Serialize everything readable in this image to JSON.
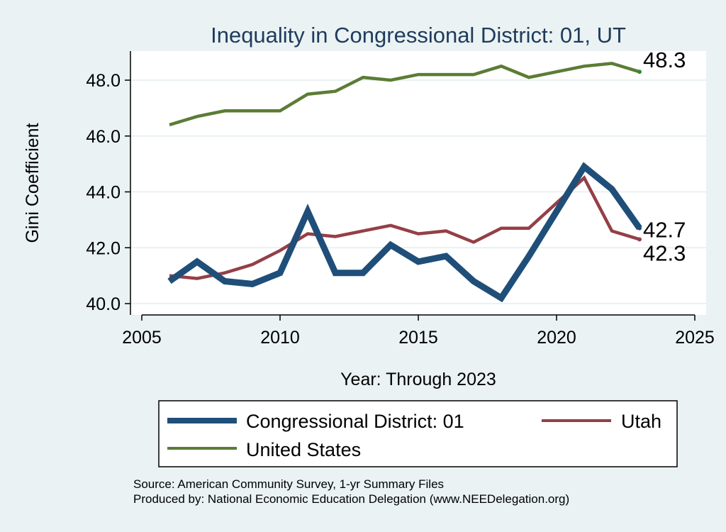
{
  "chart_data": {
    "type": "line",
    "title": "Inequality in Congressional District:  01, UT",
    "xlabel": "Year: Through 2023",
    "ylabel": "Gini Coefficient",
    "xlim": [
      2005,
      2025
    ],
    "ylim": [
      40.0,
      49.0
    ],
    "x_ticks": [
      2005,
      2010,
      2015,
      2020,
      2025
    ],
    "x_tick_labels": [
      "2005",
      "2010",
      "2015",
      "2020",
      "2025"
    ],
    "y_ticks": [
      40.0,
      42.0,
      44.0,
      46.0,
      48.0
    ],
    "y_tick_labels": [
      "40.0",
      "42.0",
      "44.0",
      "46.0",
      "48.0"
    ],
    "grid": true,
    "legend_position": "bottom",
    "series": [
      {
        "name": "Congressional District:  01",
        "color": "#1f4e79",
        "line_weight": "thick",
        "x": [
          2006,
          2007,
          2008,
          2009,
          2010,
          2011,
          2012,
          2013,
          2014,
          2015,
          2016,
          2017,
          2018,
          2019,
          2020,
          2021,
          2022,
          2023
        ],
        "y": [
          40.8,
          41.5,
          40.8,
          40.7,
          41.1,
          43.3,
          41.1,
          41.1,
          42.1,
          41.5,
          41.7,
          40.8,
          40.2,
          41.7,
          43.3,
          44.9,
          44.1,
          42.7
        ],
        "end_label": "42.7"
      },
      {
        "name": "Utah",
        "color": "#943f47",
        "line_weight": "medium",
        "x": [
          2006,
          2007,
          2008,
          2009,
          2010,
          2011,
          2012,
          2013,
          2014,
          2015,
          2016,
          2017,
          2018,
          2019,
          2020,
          2021,
          2022,
          2023
        ],
        "y": [
          41.0,
          40.9,
          41.1,
          41.4,
          41.9,
          42.5,
          42.4,
          42.6,
          42.8,
          42.5,
          42.6,
          42.2,
          42.7,
          42.7,
          43.6,
          44.5,
          42.6,
          42.3
        ],
        "end_label": "42.3"
      },
      {
        "name": "United States",
        "color": "#5b7c35",
        "line_weight": "medium",
        "x": [
          2006,
          2007,
          2008,
          2009,
          2010,
          2011,
          2012,
          2013,
          2014,
          2015,
          2016,
          2017,
          2018,
          2019,
          2020,
          2021,
          2022,
          2023
        ],
        "y": [
          46.4,
          46.7,
          46.9,
          46.9,
          46.9,
          47.5,
          47.6,
          48.1,
          48.0,
          48.2,
          48.2,
          48.2,
          48.5,
          48.1,
          48.3,
          48.5,
          48.6,
          48.3
        ],
        "end_label": "48.3"
      }
    ]
  },
  "notes": {
    "source": "Source: American Community Survey, 1-yr Summary Files",
    "produced_by": "Produced by: National Economic Education Delegation (www.NEEDelegation.org)"
  }
}
